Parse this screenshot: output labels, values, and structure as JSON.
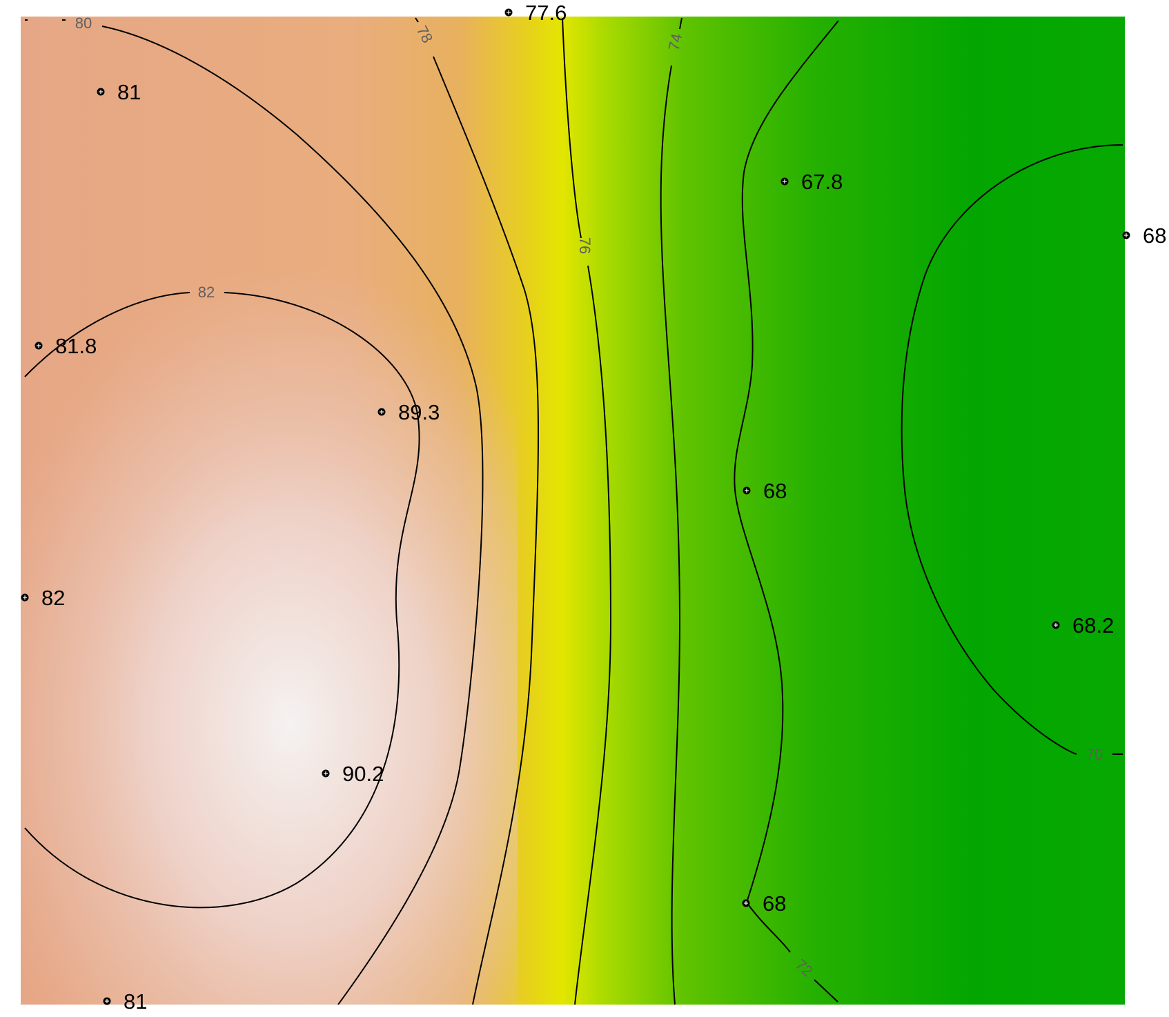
{
  "chart_data": {
    "type": "heatmap",
    "title": "",
    "xlabel": "",
    "ylabel": "",
    "grid": false,
    "legend": "none",
    "colorscale": {
      "high": "#f4f1ef",
      "mid_high": "#e6ad77",
      "mid": "#e3e600",
      "mid_low": "#6ac800",
      "low": "#00a600"
    },
    "field_range": [
      67.5,
      90.5
    ],
    "contour_levels": [
      {
        "level": 70,
        "label": "70"
      },
      {
        "level": 72,
        "label": "72"
      },
      {
        "level": 74,
        "label": "74"
      },
      {
        "level": 76,
        "label": "76"
      },
      {
        "level": 78,
        "label": "78"
      },
      {
        "level": 80,
        "label": "80"
      },
      {
        "level": 82,
        "label": "82"
      }
    ],
    "samples": [
      {
        "value": 77.6,
        "label": "77.6"
      },
      {
        "value": 81,
        "label": "81"
      },
      {
        "value": 67.8,
        "label": "67.8"
      },
      {
        "value": 68,
        "label": "68"
      },
      {
        "value": 81.8,
        "label": "81.8"
      },
      {
        "value": 89.3,
        "label": "89.3"
      },
      {
        "value": 68,
        "label": "68"
      },
      {
        "value": 82,
        "label": "82"
      },
      {
        "value": 68.2,
        "label": "68.2"
      },
      {
        "value": 90.2,
        "label": "90.2"
      },
      {
        "value": 68,
        "label": "68"
      },
      {
        "value": 81,
        "label": "81"
      }
    ]
  }
}
